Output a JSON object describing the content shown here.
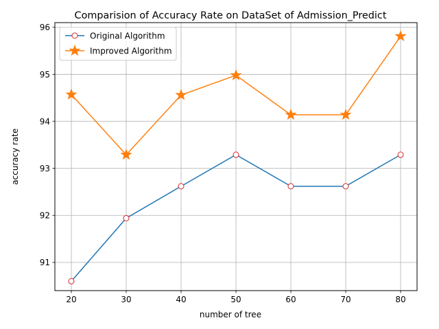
{
  "chart_data": {
    "type": "line",
    "title": "Comparision of Accuracy Rate on DataSet of Admission_Predict",
    "xlabel": "number of tree",
    "ylabel": "accuracy rate",
    "x": [
      20,
      30,
      40,
      50,
      60,
      70,
      80
    ],
    "xticks": [
      20,
      30,
      40,
      50,
      60,
      70,
      80
    ],
    "yticks": [
      91,
      92,
      93,
      94,
      95,
      96
    ],
    "xlim": [
      17,
      83
    ],
    "ylim": [
      90.4,
      96.1
    ],
    "grid": true,
    "legend_position": "top-left",
    "series": [
      {
        "name": "Original Algorithm",
        "values": [
          90.6,
          91.94,
          92.62,
          93.29,
          92.62,
          92.62,
          93.29
        ],
        "color": "#1f77b4",
        "marker": "circle",
        "marker_edge_color": "#d62728",
        "marker_face_color": "#ffffff"
      },
      {
        "name": "Improved Algorithm",
        "values": [
          94.57,
          93.29,
          94.56,
          94.98,
          94.14,
          94.14,
          95.81
        ],
        "color": "#ff7f0e",
        "marker": "star",
        "marker_edge_color": "#ff7f0e",
        "marker_face_color": "#ff7f0e"
      }
    ]
  }
}
